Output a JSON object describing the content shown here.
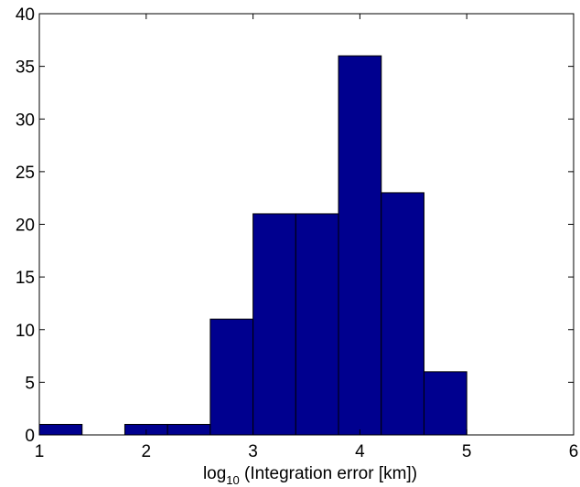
{
  "chart_data": {
    "type": "bar",
    "subtype": "histogram",
    "bins": [
      {
        "x0": 1.0,
        "x1": 1.4,
        "count": 1
      },
      {
        "x0": 1.4,
        "x1": 1.8,
        "count": 0
      },
      {
        "x0": 1.8,
        "x1": 2.2,
        "count": 1
      },
      {
        "x0": 2.2,
        "x1": 2.6,
        "count": 1
      },
      {
        "x0": 2.6,
        "x1": 3.0,
        "count": 11
      },
      {
        "x0": 3.0,
        "x1": 3.4,
        "count": 21
      },
      {
        "x0": 3.4,
        "x1": 3.8,
        "count": 21
      },
      {
        "x0": 3.8,
        "x1": 4.2,
        "count": 36
      },
      {
        "x0": 4.2,
        "x1": 4.6,
        "count": 23
      },
      {
        "x0": 4.6,
        "x1": 5.0,
        "count": 6
      }
    ],
    "xlim": [
      1,
      6
    ],
    "ylim": [
      0,
      40
    ],
    "xticks": [
      1,
      2,
      3,
      4,
      5,
      6
    ],
    "yticks": [
      0,
      5,
      10,
      15,
      20,
      25,
      30,
      35,
      40
    ],
    "xlabel": {
      "prefix": "log",
      "subscript": "10",
      "suffix": " (Integration error [km])"
    },
    "ylabel": "",
    "title": "",
    "grid": false,
    "bar_color": "#00008f",
    "bar_edge_color": "#000000"
  }
}
